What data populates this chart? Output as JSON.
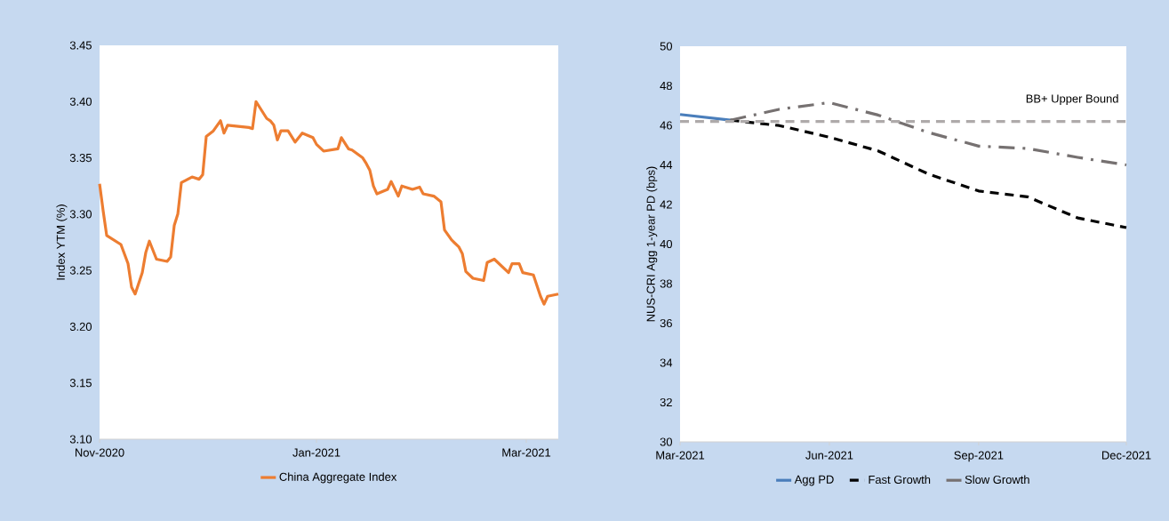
{
  "chart_data": [
    {
      "type": "line",
      "ylabel": "Index YTM (%)",
      "legend": "bottom",
      "xlim": [
        "2020-11-01",
        "2021-03-10"
      ],
      "xticks": [
        {
          "value": "2020-11-01",
          "label": "Nov-2020"
        },
        {
          "value": "2021-01-01",
          "label": "Jan-2021"
        },
        {
          "value": "2021-03-01",
          "label": "Mar-2021"
        }
      ],
      "ylim": [
        3.1,
        3.45
      ],
      "yticks": [
        {
          "value": 3.1,
          "label": "3.10"
        },
        {
          "value": 3.15,
          "label": "3.15"
        },
        {
          "value": 3.2,
          "label": "3.20"
        },
        {
          "value": 3.25,
          "label": "3.25"
        },
        {
          "value": 3.3,
          "label": "3.30"
        },
        {
          "value": 3.35,
          "label": "3.35"
        },
        {
          "value": 3.4,
          "label": "3.40"
        },
        {
          "value": 3.45,
          "label": "3.45"
        }
      ],
      "series": [
        {
          "name": "China Aggregate Index",
          "color": "#ed7d31",
          "line_style": "solid",
          "x": [
            "2020-11-01",
            "2020-11-02",
            "2020-11-03",
            "2020-11-07",
            "2020-11-09",
            "2020-11-10",
            "2020-11-11",
            "2020-11-13",
            "2020-11-14",
            "2020-11-15",
            "2020-11-17",
            "2020-11-20",
            "2020-11-21",
            "2020-11-22",
            "2020-11-23",
            "2020-11-24",
            "2020-11-27",
            "2020-11-29",
            "2020-11-30",
            "2020-12-01",
            "2020-12-03",
            "2020-12-05",
            "2020-12-06",
            "2020-12-07",
            "2020-12-13",
            "2020-12-14",
            "2020-12-15",
            "2020-12-18",
            "2020-12-19",
            "2020-12-20",
            "2020-12-21",
            "2020-12-22",
            "2020-12-24",
            "2020-12-26",
            "2020-12-28",
            "2020-12-31",
            "2021-01-01",
            "2021-01-03",
            "2021-01-07",
            "2021-01-08",
            "2021-01-10",
            "2021-01-11",
            "2021-01-14",
            "2021-01-15",
            "2021-01-16",
            "2021-01-17",
            "2021-01-18",
            "2021-01-21",
            "2021-01-22",
            "2021-01-24",
            "2021-01-25",
            "2021-01-28",
            "2021-01-30",
            "2021-01-31",
            "2021-02-03",
            "2021-02-05",
            "2021-02-06",
            "2021-02-08",
            "2021-02-10",
            "2021-02-11",
            "2021-02-12",
            "2021-02-14",
            "2021-02-17",
            "2021-02-18",
            "2021-02-20",
            "2021-02-24",
            "2021-02-25",
            "2021-02-27",
            "2021-02-28",
            "2021-03-03",
            "2021-03-05",
            "2021-03-06",
            "2021-03-07",
            "2021-03-10"
          ],
          "values": [
            3.327,
            3.303,
            3.281,
            3.273,
            3.256,
            3.235,
            3.229,
            3.248,
            3.266,
            3.276,
            3.26,
            3.258,
            3.262,
            3.29,
            3.3,
            3.328,
            3.333,
            3.331,
            3.335,
            3.369,
            3.374,
            3.383,
            3.372,
            3.379,
            3.377,
            3.376,
            3.4,
            3.385,
            3.383,
            3.379,
            3.366,
            3.374,
            3.374,
            3.364,
            3.372,
            3.368,
            3.362,
            3.356,
            3.358,
            3.368,
            3.358,
            3.357,
            3.35,
            3.345,
            3.339,
            3.325,
            3.318,
            3.322,
            3.329,
            3.316,
            3.325,
            3.322,
            3.324,
            3.318,
            3.316,
            3.311,
            3.286,
            3.277,
            3.271,
            3.265,
            3.249,
            3.243,
            3.241,
            3.257,
            3.26,
            3.248,
            3.256,
            3.256,
            3.248,
            3.246,
            3.227,
            3.22,
            3.227,
            3.229
          ]
        }
      ]
    },
    {
      "type": "line",
      "ylabel": "NUS-CRI Agg 1-year PD (bps)",
      "legend": "bottom",
      "xlim": [
        "2021-03",
        "2021-12"
      ],
      "xticks": [
        {
          "value": "2021-03",
          "label": "Mar-2021"
        },
        {
          "value": "2021-06",
          "label": "Jun-2021"
        },
        {
          "value": "2021-09",
          "label": "Sep-2021"
        },
        {
          "value": "2021-12",
          "label": "Dec-2021"
        }
      ],
      "ylim": [
        30,
        50
      ],
      "yticks": [
        30,
        32,
        34,
        36,
        38,
        40,
        42,
        44,
        46,
        48,
        50
      ],
      "ref_lines": [
        {
          "axis": "y",
          "value": 46.2,
          "label": "BB+ Upper Bound",
          "color": "#aeaaaa",
          "line_style": "dashed"
        }
      ],
      "series": [
        {
          "name": "Agg PD",
          "color": "#4a7ebb",
          "line_style": "solid",
          "x": [
            "2021-03",
            "2021-04"
          ],
          "values": [
            46.55,
            46.26
          ]
        },
        {
          "name": "Fast Growth",
          "color": "#000000",
          "line_style": "dashed",
          "x": [
            "2021-04",
            "2021-05",
            "2021-06",
            "2021-07",
            "2021-08",
            "2021-09",
            "2021-10",
            "2021-11",
            "2021-12"
          ],
          "values": [
            46.26,
            45.99,
            45.4,
            44.71,
            43.54,
            42.68,
            42.39,
            41.32,
            40.83
          ]
        },
        {
          "name": "Slow Growth",
          "color": "#767171",
          "line_style": "dashdot",
          "x": [
            "2021-04",
            "2021-05",
            "2021-06",
            "2021-07",
            "2021-08",
            "2021-09",
            "2021-10",
            "2021-11",
            "2021-12"
          ],
          "values": [
            46.26,
            46.81,
            47.15,
            46.52,
            45.64,
            44.95,
            44.83,
            44.38,
            44.0
          ]
        }
      ]
    }
  ]
}
